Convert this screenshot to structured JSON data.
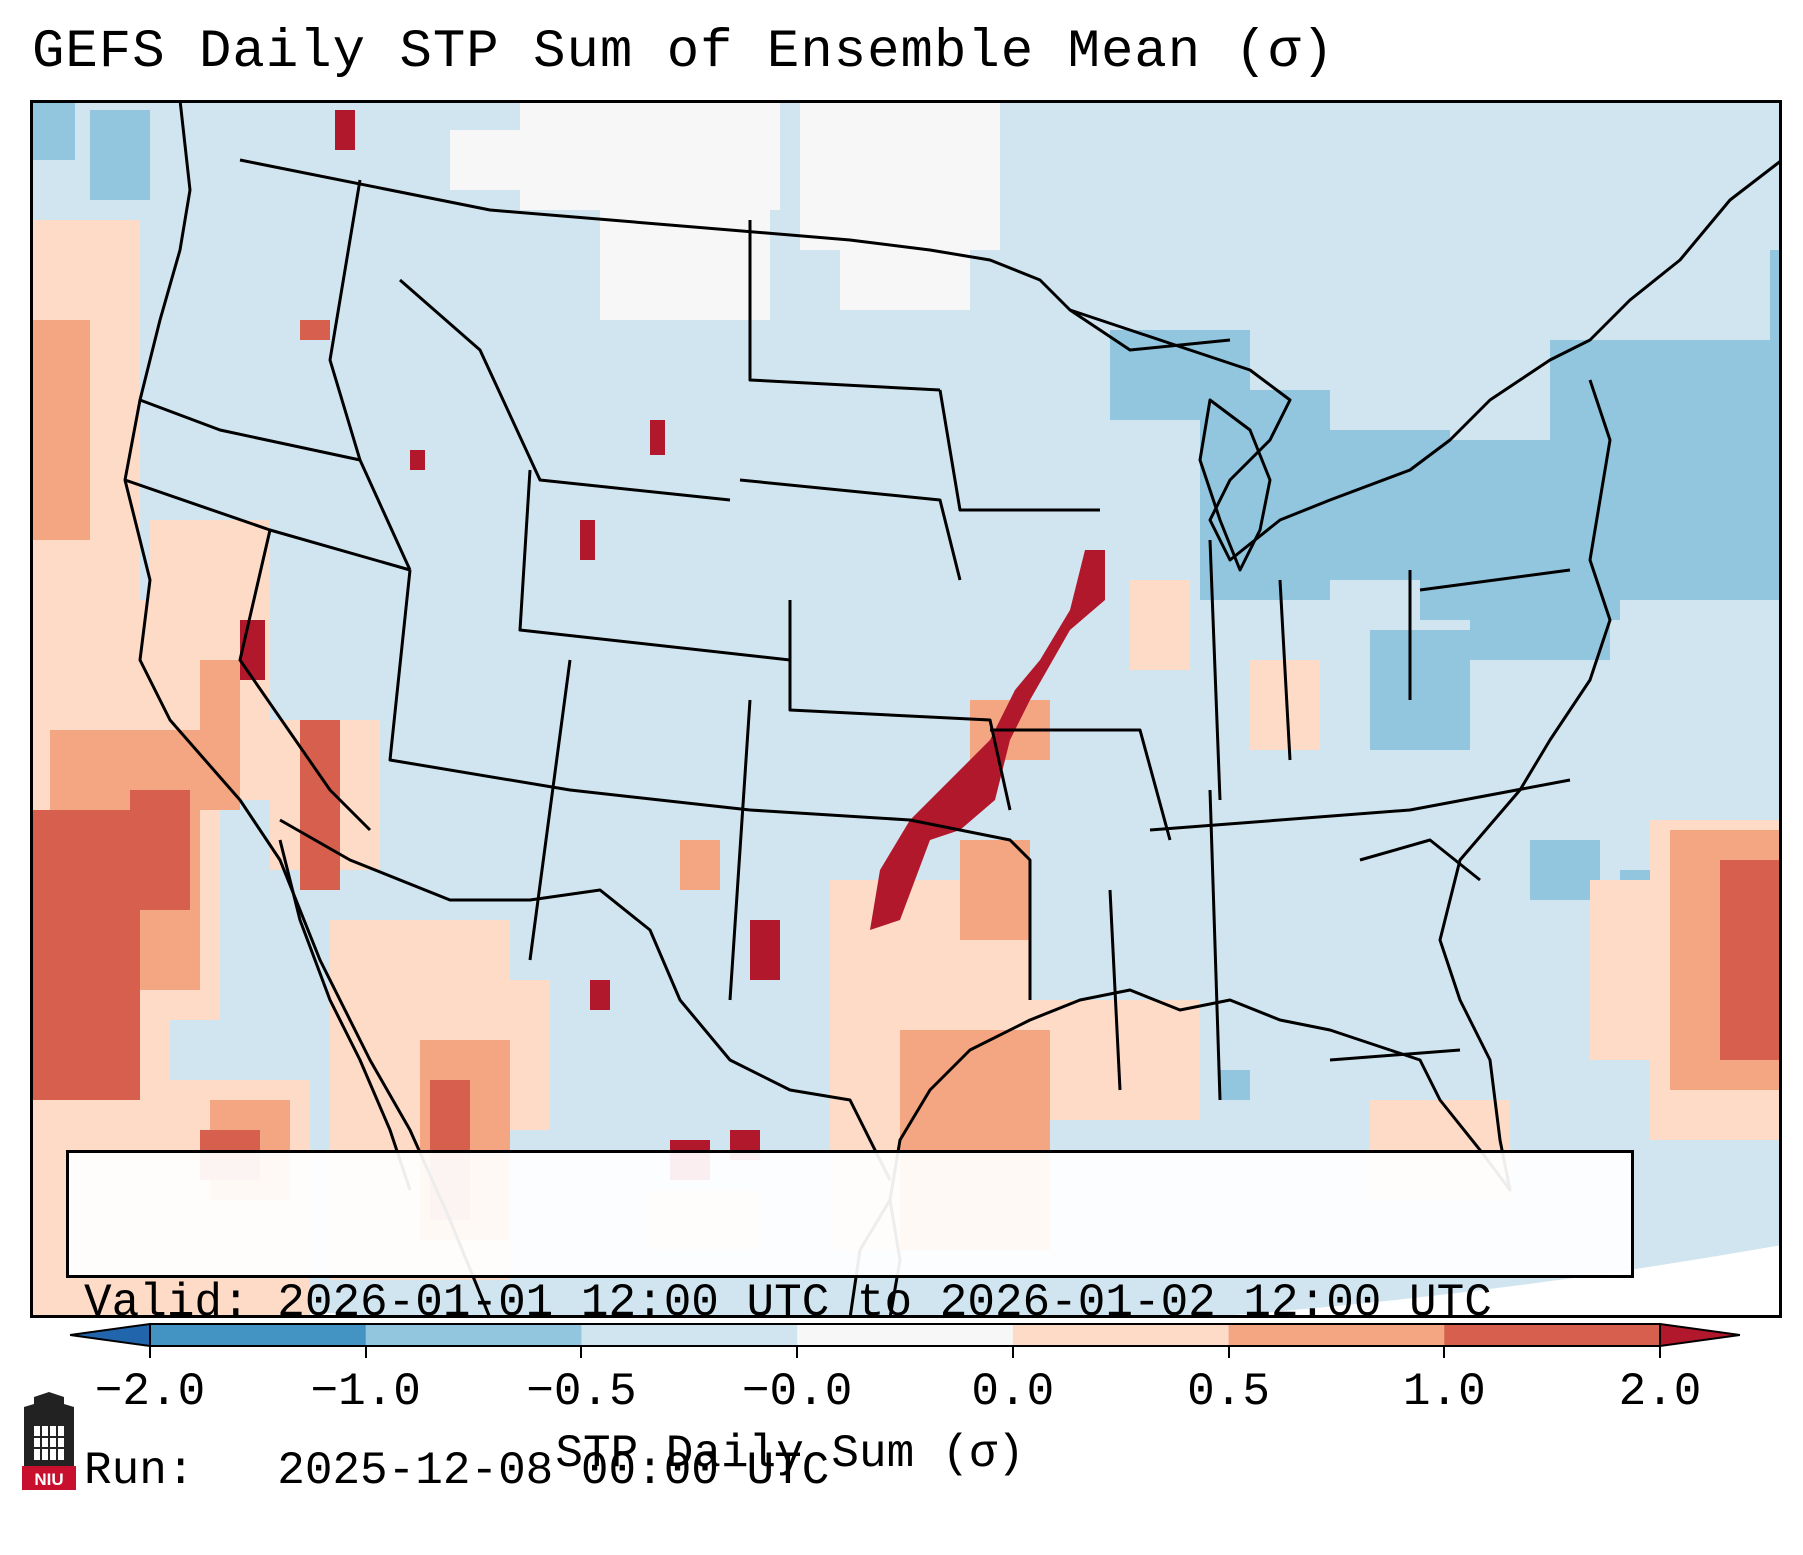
{
  "title": "GEFS Daily STP Sum of Ensemble Mean (σ)",
  "info_box": {
    "valid_line": "Valid: 2026-01-01 12:00 UTC to 2026-01-02 12:00 UTC",
    "run_line": "Run:   2025-12-08 00:00 UTC"
  },
  "colorbar": {
    "label": "STP Daily Sum (σ)",
    "ticks": [
      "−2.0",
      "−1.0",
      "−0.5",
      "−0.0",
      "0.0",
      "0.5",
      "1.0",
      "2.0"
    ],
    "bins": [
      {
        "from": -2.0,
        "to": -1.0,
        "color": "#4393c3"
      },
      {
        "from": -1.0,
        "to": -0.5,
        "color": "#92c5de"
      },
      {
        "from": -0.5,
        "to": 0.0,
        "color": "#d1e5f0"
      },
      {
        "from": 0.0,
        "to": 0.0,
        "color": "#f7f7f7"
      },
      {
        "from": 0.0,
        "to": 0.5,
        "color": "#fddbc7"
      },
      {
        "from": 0.5,
        "to": 1.0,
        "color": "#f4a582"
      },
      {
        "from": 1.0,
        "to": 2.0,
        "color": "#d6604d"
      }
    ],
    "under_color": "#2166ac",
    "over_color": "#b2182b"
  },
  "colors": {
    "base": "#d1e5f0",
    "white": "#f7f7f7",
    "light_blue": "#92c5de",
    "light_red": "#fddbc7",
    "mid_red": "#f4a582",
    "red": "#d6604d",
    "dark_red": "#b2182b"
  },
  "logo": {
    "text": "NIU"
  }
}
